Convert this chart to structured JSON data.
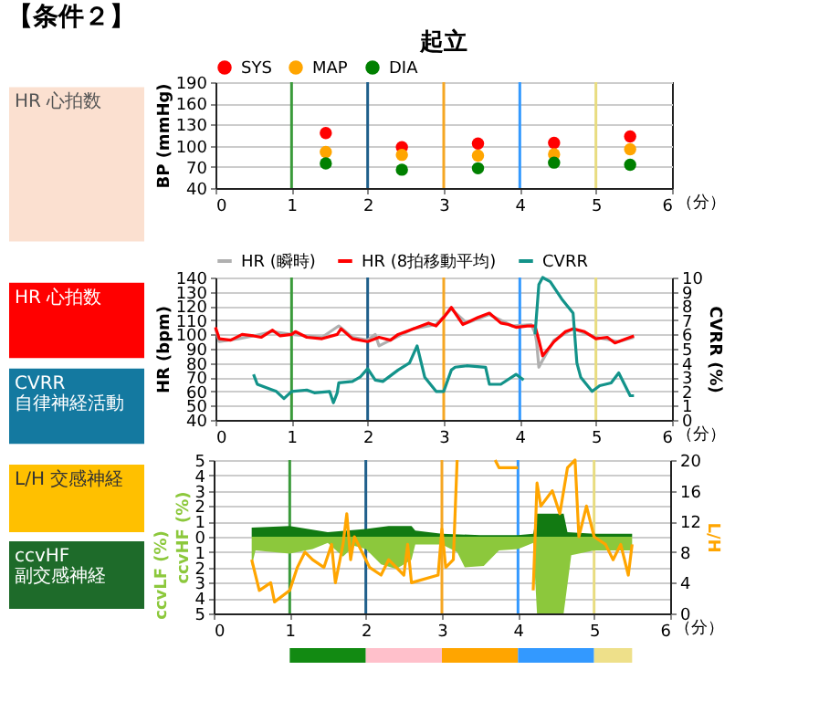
{
  "chart_data": [
    {
      "type": "scatter",
      "subtitle": "【条件２】",
      "title": "起立",
      "ylabel": "BP (mmHg)",
      "xlabel": "（分）",
      "xlim": [
        0,
        6
      ],
      "xticks": [
        0,
        1,
        2,
        3,
        4,
        5,
        6
      ],
      "ylim": [
        40,
        190
      ],
      "yticks": [
        40,
        70,
        100,
        130,
        160,
        190
      ],
      "grid": "y",
      "legend": "top",
      "marker": "circle",
      "annotations": [
        "HR 心拍数"
      ],
      "ref_lines": [
        {
          "axis": "x",
          "value": 1,
          "color": "#3a9a3a"
        },
        {
          "axis": "x",
          "value": 2,
          "color": "#1f5f8b"
        },
        {
          "axis": "x",
          "value": 3,
          "color": "#f5a623"
        },
        {
          "axis": "x",
          "value": 4,
          "color": "#3399ff"
        },
        {
          "axis": "x",
          "value": 5,
          "color": "#e8dc80"
        }
      ],
      "series": [
        {
          "name": "SYS",
          "color": "#ff0000",
          "x": [
            1.45,
            2.45,
            3.45,
            4.45,
            5.45
          ],
          "values": [
            118,
            98,
            103,
            104,
            113
          ]
        },
        {
          "name": "MAP",
          "color": "#ffa500",
          "x": [
            1.45,
            2.45,
            3.45,
            4.45,
            5.45
          ],
          "values": [
            91,
            87,
            86,
            88,
            95
          ]
        },
        {
          "name": "DIA",
          "color": "#008000",
          "x": [
            1.45,
            2.45,
            3.45,
            4.45,
            5.45
          ],
          "values": [
            75,
            66,
            68,
            76,
            73
          ]
        }
      ]
    },
    {
      "type": "line",
      "ylabel": "HR (bpm)",
      "y2label": "CVRR (%)",
      "xlabel": "（分）",
      "xlim": [
        0,
        6
      ],
      "xticks": [
        0,
        1,
        2,
        3,
        4,
        5,
        6
      ],
      "ylim": [
        40,
        140
      ],
      "yticks": [
        40,
        50,
        60,
        70,
        80,
        90,
        100,
        110,
        120,
        130,
        140
      ],
      "y2lim": [
        0,
        10
      ],
      "y2ticks": [
        0,
        1,
        2,
        3,
        4,
        5,
        6,
        7,
        8,
        9,
        10
      ],
      "grid": "y",
      "legend": "top",
      "annotations": [
        "HR 心拍数",
        "CVRR 自律神経活動"
      ],
      "ref_lines": [
        {
          "axis": "x",
          "value": 1,
          "color": "#3a9a3a"
        },
        {
          "axis": "x",
          "value": 2,
          "color": "#1f5f8b"
        },
        {
          "axis": "x",
          "value": 3,
          "color": "#f5a623"
        },
        {
          "axis": "x",
          "value": 4,
          "color": "#3399ff"
        },
        {
          "axis": "x",
          "value": 5,
          "color": "#e8dc80"
        }
      ],
      "series": [
        {
          "name": "HR (瞬時)",
          "color": "#b0b0b0",
          "x": [
            0,
            0.05,
            0.3,
            0.5,
            0.75,
            1.0,
            1.4,
            1.62,
            1.8,
            2.0,
            2.1,
            2.15,
            2.3,
            2.6,
            2.9,
            3.1,
            3.3,
            3.6,
            3.9,
            4.15,
            4.2,
            4.22,
            4.25,
            4.3,
            4.45,
            4.7,
            5.0,
            5.3,
            5.5
          ],
          "values": [
            104,
            95,
            97,
            99,
            102,
            100,
            98,
            106,
            98,
            96,
            100,
            92,
            96,
            104,
            107,
            118,
            108,
            114,
            106,
            107,
            101,
            95,
            77,
            82,
            96,
            104,
            98,
            95,
            98
          ]
        },
        {
          "name": "HR (8拍移動平均)",
          "color": "#ff0000",
          "x": [
            0,
            0.05,
            0.2,
            0.35,
            0.5,
            0.6,
            0.75,
            0.85,
            1.0,
            1.05,
            1.2,
            1.4,
            1.6,
            1.65,
            1.8,
            2.0,
            2.15,
            2.3,
            2.4,
            2.6,
            2.8,
            2.9,
            3.0,
            3.1,
            3.25,
            3.45,
            3.6,
            3.75,
            3.85,
            3.95,
            4.1,
            4.2,
            4.25,
            4.3,
            4.45,
            4.6,
            4.7,
            4.85,
            5.0,
            5.15,
            5.25,
            5.4,
            5.5
          ],
          "values": [
            105,
            97,
            96,
            100,
            99,
            98,
            103,
            99,
            100,
            102,
            98,
            97,
            100,
            104,
            97,
            95,
            98,
            96,
            100,
            104,
            108,
            106,
            112,
            119,
            107,
            112,
            115,
            108,
            107,
            105,
            106,
            106,
            96,
            85,
            95,
            102,
            104,
            102,
            97,
            98,
            94,
            97,
            99
          ]
        },
        {
          "name": "CVRR",
          "color": "#13938a",
          "axis": "y2",
          "x": [
            0.5,
            0.55,
            0.75,
            0.8,
            0.9,
            1.0,
            1.2,
            1.3,
            1.5,
            1.55,
            1.6,
            1.62,
            1.8,
            1.9,
            2.0,
            2.1,
            2.2,
            2.4,
            2.55,
            2.65,
            2.75,
            2.9,
            3.0,
            3.1,
            3.15,
            3.3,
            3.55,
            3.6,
            3.75,
            3.95,
            4.05,
            4.12,
            4.2,
            4.25,
            4.3,
            4.4,
            4.55,
            4.7,
            4.75,
            4.8,
            4.95,
            5.05,
            5.2,
            5.3,
            5.45,
            5.5
          ],
          "values": [
            3.2,
            2.5,
            2.1,
            2.0,
            1.5,
            2.0,
            2.1,
            1.9,
            2.0,
            1.2,
            1.9,
            2.6,
            2.7,
            3.0,
            3.6,
            2.8,
            2.7,
            3.5,
            4.0,
            5.2,
            3.0,
            2.0,
            2.0,
            3.5,
            3.7,
            3.8,
            3.7,
            2.5,
            2.5,
            3.2,
            2.8,
            null,
            6.0,
            9.5,
            10,
            9.7,
            8.5,
            7.5,
            4.0,
            3.0,
            2.0,
            2.4,
            2.6,
            3.3,
            1.7,
            1.7
          ]
        }
      ]
    },
    {
      "type": "area",
      "ylabel": "ccvHF (%)",
      "y2label": "L/H",
      "xlabel": "（分）",
      "xlim": [
        0,
        6
      ],
      "xticks": [
        0,
        1,
        2,
        3,
        4,
        5,
        6
      ],
      "ylim": [
        -5,
        5
      ],
      "yticks": [
        {
          "value": -5,
          "label": "5"
        },
        {
          "value": -4,
          "label": "4"
        },
        {
          "value": -3,
          "label": "3"
        },
        {
          "value": -2,
          "label": "2"
        },
        {
          "value": -1,
          "label": "1"
        },
        0,
        1,
        2,
        3,
        4,
        5
      ],
      "y2lim": [
        0,
        20
      ],
      "y2ticks": [
        0,
        4,
        8,
        12,
        16,
        20
      ],
      "grid": "y",
      "annotations": [
        "L/H 交感神経",
        "ccvHF 副交感神経",
        "ccvLF (%)"
      ],
      "ref_lines": [
        {
          "axis": "x",
          "value": 1,
          "color": "#3a9a3a"
        },
        {
          "axis": "x",
          "value": 2,
          "color": "#1f5f8b"
        },
        {
          "axis": "x",
          "value": 3,
          "color": "#f5a623"
        },
        {
          "axis": "x",
          "value": 4,
          "color": "#3399ff"
        },
        {
          "axis": "x",
          "value": 5,
          "color": "#e8dc80"
        }
      ],
      "series": [
        {
          "color": "#8cc83c",
          "x": [
            0.5,
            0.55,
            1.0,
            1.3,
            1.5,
            1.7,
            1.85,
            2.0,
            2.2,
            2.4,
            2.6,
            2.65,
            3.0,
            3.2,
            3.3,
            3.55,
            3.75,
            4.0,
            4.2,
            4.25,
            4.6,
            4.7,
            5.0,
            5.5
          ],
          "values": [
            -1.9,
            -0.9,
            -1.1,
            -0.8,
            -0.4,
            -1.3,
            -0.6,
            -0.8,
            -1.8,
            -2.1,
            -1.5,
            -0.5,
            -0.5,
            -1.0,
            -2.0,
            -1.9,
            -0.9,
            -0.8,
            -0.4,
            -5,
            -5,
            -1.2,
            -0.9,
            -0.9
          ]
        },
        {
          "color": "#127a12",
          "x": [
            0.5,
            1.0,
            1.5,
            2.0,
            2.3,
            2.6,
            2.65,
            3.0,
            3.5,
            4.0,
            4.2,
            4.25,
            4.6,
            4.65,
            5.0,
            5.5
          ],
          "values": [
            0.6,
            0.7,
            0.3,
            0.5,
            0.7,
            0.7,
            0.4,
            0.2,
            0.1,
            0.1,
            0.2,
            1.5,
            1.5,
            0.3,
            0.2,
            0.2
          ]
        },
        {
          "type": "line",
          "axis": "y2",
          "color": "#ffa500",
          "x": [
            0.5,
            0.6,
            0.75,
            0.8,
            1.0,
            1.1,
            1.2,
            1.3,
            1.45,
            1.55,
            1.6,
            1.7,
            1.75,
            1.8,
            1.85,
            1.95,
            2.05,
            2.2,
            2.3,
            2.5,
            2.55,
            2.6,
            2.95,
            3.0,
            3.05,
            3.15,
            3.2,
            3.4,
            3.7,
            3.75,
            4.0,
            4.1,
            4.2,
            4.25,
            4.3,
            4.45,
            4.55,
            4.65,
            4.75,
            4.8,
            4.9,
            5.0,
            5.15,
            5.25,
            5.35,
            5.45,
            5.5
          ],
          "values": [
            7,
            3,
            4,
            1.5,
            3,
            6,
            8,
            7,
            6,
            9,
            4,
            9,
            13,
            7,
            10,
            8,
            6,
            5,
            7,
            5,
            9,
            4,
            5,
            11,
            6,
            7,
            20,
            null,
            20,
            19,
            19,
            null,
            3,
            17,
            14,
            16,
            13,
            19,
            20,
            10,
            14,
            10,
            9,
            7,
            9,
            5,
            9
          ]
        }
      ]
    }
  ]
}
